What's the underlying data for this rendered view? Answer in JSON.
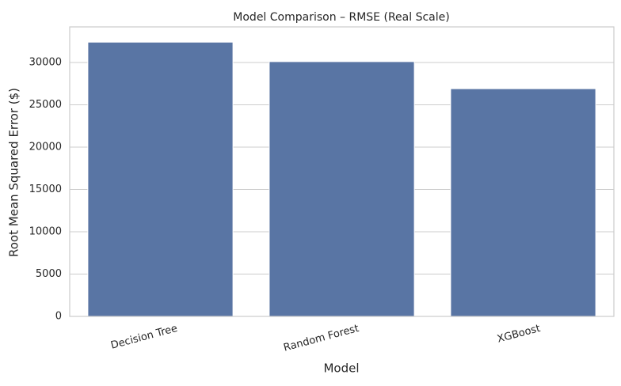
{
  "chart_data": {
    "type": "bar",
    "title": "Model Comparison – RMSE (Real Scale)",
    "xlabel": "Model",
    "ylabel": "Root Mean Squared Error ($)",
    "categories": [
      "Decision Tree",
      "Random Forest",
      "XGBoost"
    ],
    "values": [
      32400,
      30100,
      26900
    ],
    "ylim": [
      0,
      34200
    ],
    "yticks": [
      0,
      5000,
      10000,
      15000,
      20000,
      25000,
      30000
    ],
    "ytick_labels": [
      "0",
      "5000",
      "10000",
      "15000",
      "20000",
      "25000",
      "30000"
    ],
    "grid": "horizontal",
    "bar_color": "#5975a4",
    "grid_color": "#cccccc",
    "spine_color": "#cccccc"
  }
}
